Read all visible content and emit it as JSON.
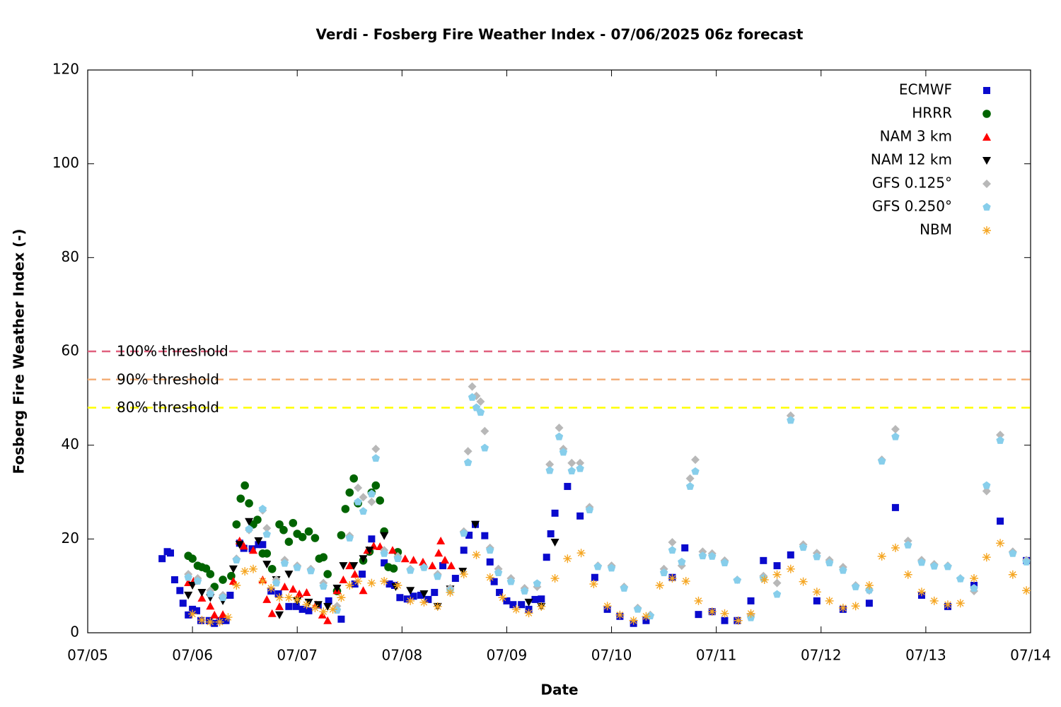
{
  "chart_data": {
    "type": "scatter",
    "title": "Verdi - Fosberg Fire Weather Index - 07/06/2025 06z forecast",
    "xlabel": "Date",
    "ylabel": "Fosberg Fire Weather Index (-)",
    "xlim": [
      0,
      9
    ],
    "xticks": [
      {
        "value": 0,
        "label": "07/05"
      },
      {
        "value": 1,
        "label": "07/06"
      },
      {
        "value": 2,
        "label": "07/07"
      },
      {
        "value": 3,
        "label": "07/08"
      },
      {
        "value": 4,
        "label": "07/09"
      },
      {
        "value": 5,
        "label": "07/10"
      },
      {
        "value": 6,
        "label": "07/11"
      },
      {
        "value": 7,
        "label": "07/12"
      },
      {
        "value": 8,
        "label": "07/13"
      },
      {
        "value": 9,
        "label": "07/14"
      }
    ],
    "ylim": [
      0,
      120
    ],
    "yticks": [
      0,
      20,
      40,
      60,
      80,
      100,
      120
    ],
    "legend": "upper right",
    "thresholds": [
      {
        "label": "100% threshold",
        "value": 60,
        "color": "#e0607e"
      },
      {
        "label": "90% threshold",
        "value": 54,
        "color": "#f4b07a"
      },
      {
        "label": "80% threshold",
        "value": 48,
        "color": "#ffff00"
      }
    ],
    "series": [
      {
        "name": "ECMWF",
        "color": "#0a0acd",
        "marker": "square",
        "x": [
          0.71,
          0.76,
          0.79,
          0.83,
          0.88,
          0.91,
          0.96,
          1.0,
          1.04,
          1.08,
          1.16,
          1.21,
          1.26,
          1.32,
          1.36,
          1.45,
          1.49,
          1.57,
          1.63,
          1.67,
          1.75,
          1.82,
          1.92,
          1.99,
          2.05,
          2.11,
          2.2,
          2.3,
          2.42,
          2.55,
          2.62,
          2.71,
          2.83,
          2.88,
          2.93,
          2.98,
          3.05,
          3.11,
          3.18,
          3.25,
          3.31,
          3.39,
          3.51,
          3.59,
          3.64,
          3.7,
          3.79,
          3.84,
          3.88,
          3.93,
          4.0,
          4.06,
          4.14,
          4.21,
          4.27,
          4.33,
          4.38,
          4.42,
          4.46,
          4.58,
          4.7,
          4.84,
          4.96,
          5.08,
          5.21,
          5.33,
          5.58,
          5.7,
          5.83,
          5.96,
          6.08,
          6.2,
          6.33,
          6.45,
          6.58,
          6.71,
          6.96,
          7.21,
          7.46,
          7.71,
          7.96,
          8.21,
          8.46,
          8.71,
          8.96
        ],
        "values": [
          15.8,
          17.3,
          17,
          11.3,
          9,
          6.3,
          3.8,
          5,
          4.7,
          2.6,
          2.6,
          2,
          2.6,
          2.6,
          8,
          19.1,
          18,
          17.9,
          18.8,
          18.8,
          8.9,
          8.3,
          5.6,
          5.6,
          5,
          4.7,
          5.9,
          6.8,
          2.9,
          10.4,
          12.5,
          20,
          14.9,
          10.4,
          10.1,
          7.5,
          7.2,
          7.8,
          8,
          7.1,
          8.6,
          14.3,
          11.6,
          17.6,
          20.8,
          23.1,
          20.7,
          15.1,
          10.9,
          8.6,
          6.8,
          6,
          6,
          5,
          7.1,
          7.2,
          16.1,
          21.1,
          25.5,
          31.2,
          24.9,
          11.8,
          5,
          3.5,
          2,
          2.6,
          11.8,
          18.1,
          3.9,
          4.5,
          2.6,
          2.6,
          6.8,
          15.4,
          14.3,
          16.6,
          6.8,
          5,
          6.3,
          26.7,
          8,
          5.6,
          10.1,
          23.8,
          15.4
        ]
      },
      {
        "name": "HRRR",
        "color": "#006400",
        "marker": "circle",
        "x": [
          0.96,
          1.0,
          1.05,
          1.09,
          1.13,
          1.17,
          1.21,
          1.29,
          1.37,
          1.42,
          1.46,
          1.5,
          1.54,
          1.58,
          1.62,
          1.67,
          1.71,
          1.76,
          1.83,
          1.87,
          1.92,
          1.96,
          2.0,
          2.05,
          2.11,
          2.17,
          2.21,
          2.25,
          2.29,
          2.38,
          2.42,
          2.46,
          2.5,
          2.54,
          2.58,
          2.63,
          2.69,
          2.71,
          2.75,
          2.79,
          2.83,
          2.87,
          2.92,
          2.96
        ],
        "values": [
          16.4,
          15.8,
          14.3,
          14,
          13.7,
          12.5,
          9.8,
          11.3,
          12.1,
          23.1,
          28.6,
          31.4,
          27.6,
          23.1,
          24.1,
          16.9,
          16.9,
          13.6,
          23.1,
          21.9,
          19.4,
          23.4,
          21.1,
          20.4,
          21.6,
          20.2,
          15.8,
          16.1,
          12.5,
          8.9,
          20.8,
          26.4,
          29.9,
          32.9,
          27.6,
          15.4,
          17.3,
          29.9,
          31.4,
          28.2,
          21.6,
          14,
          13.7,
          17.2
        ]
      },
      {
        "name": "NAM 3 km",
        "color": "#ff0000",
        "marker": "triangle",
        "x": [
          0.96,
          1.01,
          1.09,
          1.17,
          1.21,
          1.29,
          1.39,
          1.45,
          1.49,
          1.58,
          1.67,
          1.71,
          1.76,
          1.83,
          1.88,
          1.96,
          2.02,
          2.09,
          2.18,
          2.24,
          2.29,
          2.38,
          2.44,
          2.5,
          2.55,
          2.63,
          2.67,
          2.73,
          2.79,
          2.91,
          3.03,
          3.11,
          3.2,
          3.29,
          3.35,
          3.37,
          3.41,
          3.47
        ],
        "values": [
          10.7,
          11,
          7.4,
          5.7,
          3.8,
          3.9,
          11,
          19.6,
          18.5,
          17.6,
          11.3,
          7.1,
          4.1,
          5.6,
          9.8,
          9.3,
          8.3,
          8.6,
          6,
          3.8,
          2.6,
          9,
          11.3,
          14.3,
          12.5,
          9,
          17.6,
          18.5,
          18.4,
          17.6,
          15.8,
          15.5,
          15.1,
          14.3,
          17,
          19.6,
          15.5,
          14.3
        ]
      },
      {
        "name": "NAM 12 km",
        "color": "#000000",
        "marker": "triangle-down",
        "x": [
          0.96,
          1.0,
          1.09,
          1.17,
          1.29,
          1.39,
          1.45,
          1.54,
          1.63,
          1.71,
          1.8,
          1.83,
          1.92,
          2.0,
          2.11,
          2.2,
          2.29,
          2.38,
          2.44,
          2.54,
          2.63,
          2.69,
          2.83,
          2.94,
          3.08,
          3.21,
          3.34,
          3.46,
          3.58,
          3.7,
          4.21,
          4.33,
          4.46
        ],
        "values": [
          8,
          10.1,
          8.6,
          7.5,
          6.8,
          13.6,
          18.8,
          23.7,
          19.6,
          14.6,
          11.3,
          3.8,
          12.5,
          6.8,
          6.5,
          6,
          5.6,
          9.5,
          14.3,
          14.3,
          15.8,
          17.6,
          20.7,
          9.8,
          9,
          8.3,
          5.6,
          9.3,
          13.1,
          23.1,
          6.5,
          5.6,
          19.3
        ]
      },
      {
        "name": "GFS 0.125°",
        "color": "#b8b8b8",
        "marker": "diamond",
        "x": [
          0.96,
          1.05,
          1.17,
          1.29,
          1.42,
          1.54,
          1.67,
          1.71,
          1.8,
          1.88,
          2.0,
          2.13,
          2.25,
          2.38,
          2.5,
          2.58,
          2.63,
          2.71,
          2.75,
          2.83,
          2.96,
          3.08,
          3.21,
          3.34,
          3.46,
          3.59,
          3.63,
          3.67,
          3.71,
          3.75,
          3.79,
          3.84,
          3.92,
          4.04,
          4.17,
          4.29,
          4.41,
          4.5,
          4.54,
          4.62,
          4.7,
          4.79,
          4.87,
          5.0,
          5.12,
          5.25,
          5.37,
          5.5,
          5.58,
          5.67,
          5.75,
          5.8,
          5.87,
          5.96,
          6.08,
          6.2,
          6.33,
          6.45,
          6.58,
          6.71,
          6.83,
          6.96,
          7.08,
          7.21,
          7.33,
          7.46,
          7.58,
          7.71,
          7.83,
          7.96,
          8.08,
          8.21,
          8.33,
          8.46,
          8.58,
          8.71,
          8.83,
          8.96
        ],
        "values": [
          12.5,
          11.6,
          9,
          8,
          15.8,
          21.9,
          26.1,
          22.3,
          11.3,
          15.5,
          14.3,
          13.6,
          10.6,
          5.7,
          20.7,
          30.9,
          28.9,
          27.9,
          39.2,
          17.6,
          16.3,
          13.6,
          14,
          12.5,
          9.5,
          21.6,
          38.7,
          52.5,
          50.5,
          49.3,
          43,
          18.1,
          13.6,
          11.6,
          9.5,
          9.8,
          35.9,
          43.7,
          39.2,
          36.2,
          36.2,
          26.8,
          14.3,
          14.3,
          9.8,
          5.3,
          3.8,
          13.6,
          19.3,
          14.3,
          32.9,
          36.9,
          17.3,
          16.9,
          15.4,
          11.3,
          3.8,
          12.1,
          10.6,
          46.3,
          18.8,
          17,
          15.5,
          14,
          10.1,
          9,
          36.9,
          43.4,
          19.6,
          15.5,
          14.6,
          14.3,
          11.6,
          8.9,
          30.2,
          42.2,
          17.3,
          15.5
        ]
      },
      {
        "name": "GFS 0.250°",
        "color": "#87ceeb",
        "marker": "pentagon",
        "x": [
          0.96,
          1.05,
          1.17,
          1.29,
          1.42,
          1.54,
          1.67,
          1.71,
          1.8,
          1.88,
          2.0,
          2.13,
          2.25,
          2.38,
          2.5,
          2.58,
          2.63,
          2.71,
          2.75,
          2.83,
          2.96,
          3.08,
          3.21,
          3.34,
          3.46,
          3.59,
          3.63,
          3.67,
          3.71,
          3.75,
          3.79,
          3.84,
          3.92,
          4.04,
          4.17,
          4.29,
          4.41,
          4.5,
          4.54,
          4.62,
          4.7,
          4.79,
          4.87,
          5.0,
          5.12,
          5.25,
          5.37,
          5.5,
          5.58,
          5.67,
          5.75,
          5.8,
          5.87,
          5.96,
          6.08,
          6.2,
          6.33,
          6.45,
          6.58,
          6.71,
          6.83,
          6.96,
          7.08,
          7.21,
          7.33,
          7.46,
          7.58,
          7.71,
          7.83,
          7.96,
          8.08,
          8.21,
          8.33,
          8.46,
          8.58,
          8.71,
          8.83,
          8.96
        ],
        "values": [
          11.8,
          11,
          8.3,
          7.5,
          15.5,
          22.1,
          26.4,
          21,
          10.6,
          14.8,
          13.9,
          13.2,
          9.9,
          4.8,
          20.2,
          27.9,
          25.9,
          29.6,
          37.2,
          16.9,
          15.8,
          13.3,
          13.9,
          12,
          9,
          21.2,
          36.3,
          50.2,
          48,
          47,
          39.4,
          17.6,
          12.8,
          10.9,
          8.9,
          10.5,
          34.6,
          41.8,
          38.5,
          34.5,
          35,
          26.2,
          14.1,
          13.8,
          9.5,
          5,
          3.6,
          12.8,
          17.6,
          15.1,
          31.2,
          34.4,
          16.4,
          16.3,
          14.9,
          11.2,
          3.2,
          11.6,
          8.2,
          45.3,
          18.2,
          16.2,
          14.9,
          13.3,
          9.8,
          9.1,
          36.6,
          41.8,
          18.7,
          15,
          14.2,
          14.1,
          11.5,
          9.5,
          31.4,
          41,
          16.9,
          15.1
        ]
      },
      {
        "name": "NBM",
        "color": "#f5a623",
        "marker": "asterisk",
        "x": [
          1.0,
          1.09,
          1.17,
          1.26,
          1.34,
          1.42,
          1.5,
          1.58,
          1.67,
          1.75,
          1.83,
          1.92,
          2.0,
          2.09,
          2.17,
          2.25,
          2.34,
          2.42,
          2.5,
          2.58,
          2.71,
          2.83,
          2.96,
          3.08,
          3.21,
          3.34,
          3.46,
          3.59,
          3.71,
          3.84,
          3.96,
          4.09,
          4.21,
          4.33,
          4.46,
          4.58,
          4.71,
          4.83,
          4.96,
          5.08,
          5.21,
          5.33,
          5.46,
          5.58,
          5.71,
          5.83,
          5.96,
          6.08,
          6.21,
          6.33,
          6.46,
          6.58,
          6.71,
          6.83,
          6.96,
          7.08,
          7.21,
          7.33,
          7.46,
          7.58,
          7.71,
          7.83,
          7.96,
          8.08,
          8.21,
          8.33,
          8.46,
          8.58,
          8.71,
          8.83,
          8.96
        ],
        "values": [
          4,
          2.7,
          2.3,
          2.3,
          3.3,
          10.1,
          13.1,
          13.6,
          11,
          9.5,
          7.5,
          7.5,
          7.1,
          6,
          5.3,
          4.5,
          5,
          7.5,
          10.1,
          11,
          10.6,
          11,
          10.1,
          6.8,
          6.5,
          5.6,
          8.6,
          12.5,
          16.6,
          11.8,
          7.5,
          5,
          4.2,
          5.6,
          11.6,
          15.8,
          17,
          10.4,
          5.7,
          3.8,
          2.6,
          3.5,
          10.1,
          11.6,
          11,
          6.8,
          4.5,
          4.1,
          2.6,
          4.1,
          11.3,
          12.4,
          13.6,
          10.9,
          8.7,
          6.8,
          5.3,
          5.7,
          10.1,
          16.3,
          18.1,
          12.4,
          8.7,
          6.8,
          6,
          6.3,
          11.6,
          16.1,
          19.1,
          12.4,
          9
        ]
      }
    ]
  }
}
